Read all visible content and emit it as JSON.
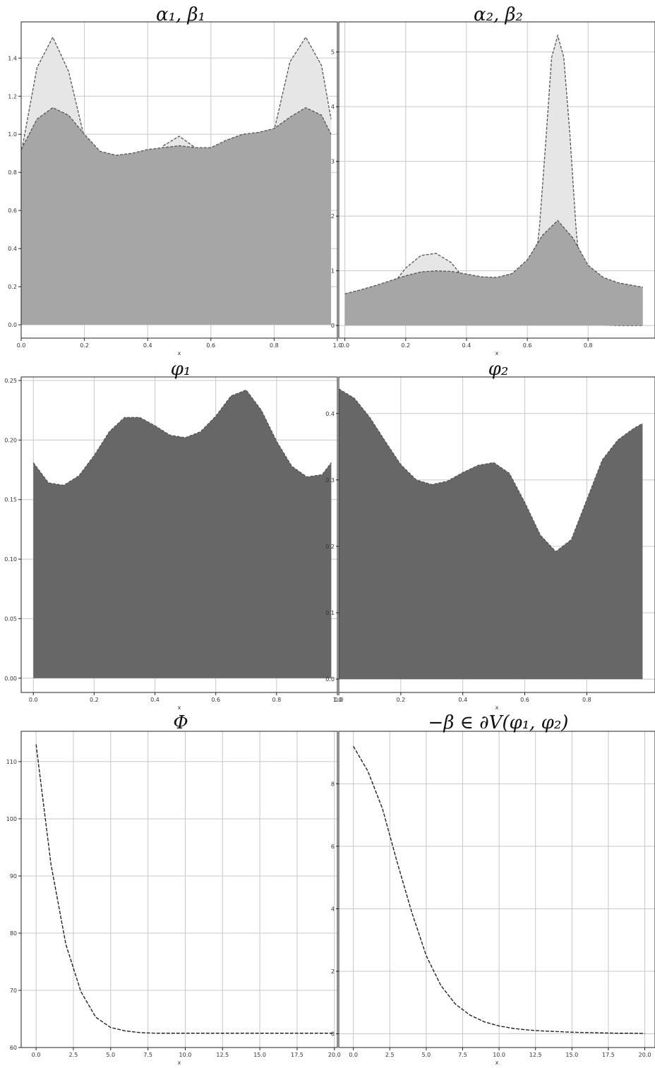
{
  "chart_data": [
    {
      "type": "area",
      "title": "α₁, β₁",
      "xlabel": "x",
      "xlim": [
        0,
        1.0
      ],
      "ylim": [
        -0.07,
        1.59
      ],
      "xticks": [
        0.0,
        0.2,
        0.4,
        0.6,
        0.8,
        1.0
      ],
      "yticks": [
        0.0,
        0.2,
        0.4,
        0.6,
        0.8,
        1.0,
        1.2,
        1.4
      ],
      "xtick_labels": [
        "0.0",
        "0.2",
        "0.4",
        "0.6",
        "0.8",
        "1.0"
      ],
      "ytick_labels": [
        "0.0",
        "0.2",
        "0.4",
        "0.6",
        "0.8",
        "1.0",
        "1.2",
        "1.4"
      ],
      "grid": true,
      "series": [
        {
          "color": "#e6e6e6",
          "x": [
            0.0,
            0.05,
            0.1,
            0.15,
            0.2,
            0.25,
            0.3,
            0.35,
            0.4,
            0.45,
            0.5,
            0.55,
            0.6,
            0.65,
            0.7,
            0.75,
            0.8,
            0.85,
            0.9,
            0.95,
            0.98
          ],
          "y": [
            0.9,
            1.35,
            1.51,
            1.33,
            0.98,
            0.73,
            0.61,
            0.67,
            0.82,
            0.94,
            0.99,
            0.93,
            0.78,
            0.64,
            0.61,
            0.72,
            1.02,
            1.38,
            1.51,
            1.36,
            1.08
          ]
        },
        {
          "color": "#a6a6a6",
          "x": [
            0.0,
            0.05,
            0.1,
            0.15,
            0.2,
            0.25,
            0.3,
            0.35,
            0.4,
            0.45,
            0.5,
            0.55,
            0.6,
            0.65,
            0.7,
            0.75,
            0.8,
            0.85,
            0.9,
            0.95,
            0.98
          ],
          "y": [
            0.92,
            1.08,
            1.14,
            1.1,
            1.0,
            0.91,
            0.89,
            0.9,
            0.92,
            0.93,
            0.94,
            0.93,
            0.93,
            0.97,
            1.0,
            1.01,
            1.03,
            1.09,
            1.14,
            1.1,
            1.0
          ]
        }
      ]
    },
    {
      "type": "area",
      "title": "α₂, β₂",
      "xlabel": "x",
      "xlim": [
        -0.02,
        1.02
      ],
      "ylim": [
        -0.23,
        5.55
      ],
      "xticks": [
        0.0,
        0.2,
        0.4,
        0.6,
        0.8
      ],
      "yticks": [
        0,
        1,
        2,
        3,
        4,
        5
      ],
      "xtick_labels": [
        "0.0",
        "0.2",
        "0.4",
        "0.6",
        "0.8"
      ],
      "ytick_labels": [
        "0",
        "1",
        "2",
        "3",
        "4",
        "5"
      ],
      "grid": true,
      "series": [
        {
          "color": "#e6e6e6",
          "x": [
            0.0,
            0.05,
            0.1,
            0.15,
            0.2,
            0.25,
            0.3,
            0.35,
            0.4,
            0.45,
            0.5,
            0.55,
            0.6,
            0.62,
            0.64,
            0.66,
            0.68,
            0.7,
            0.72,
            0.74,
            0.76,
            0.78,
            0.8,
            0.85,
            0.9,
            0.98
          ],
          "y": [
            0.02,
            0.1,
            0.35,
            0.7,
            1.05,
            1.28,
            1.32,
            1.15,
            0.8,
            0.42,
            0.18,
            0.1,
            0.3,
            0.8,
            1.8,
            3.3,
            4.9,
            5.3,
            4.9,
            3.5,
            1.8,
            0.6,
            0.15,
            0.01,
            0.0,
            0.0
          ]
        },
        {
          "color": "#a6a6a6",
          "x": [
            0.0,
            0.05,
            0.1,
            0.15,
            0.2,
            0.25,
            0.3,
            0.35,
            0.4,
            0.45,
            0.5,
            0.55,
            0.6,
            0.65,
            0.7,
            0.75,
            0.8,
            0.85,
            0.9,
            0.95,
            0.98
          ],
          "y": [
            0.58,
            0.65,
            0.73,
            0.82,
            0.91,
            0.98,
            1.0,
            0.99,
            0.94,
            0.89,
            0.88,
            0.95,
            1.2,
            1.65,
            1.92,
            1.6,
            1.1,
            0.88,
            0.78,
            0.73,
            0.7
          ]
        }
      ]
    },
    {
      "type": "area",
      "title": "φ₁",
      "xlabel": "x",
      "xlim": [
        -0.04,
        1.0
      ],
      "ylim": [
        -0.012,
        0.253
      ],
      "xticks": [
        0.0,
        0.2,
        0.4,
        0.6,
        0.8,
        1.0
      ],
      "yticks": [
        0.0,
        0.05,
        0.1,
        0.15,
        0.2,
        0.25
      ],
      "xtick_labels": [
        "0.0",
        "0.2",
        "0.4",
        "0.6",
        "0.8",
        "1.0"
      ],
      "ytick_labels": [
        "0.00",
        "0.05",
        "0.10",
        "0.15",
        "0.20",
        "0.25"
      ],
      "grid": true,
      "series": [
        {
          "color": "#676767",
          "x": [
            0.0,
            0.05,
            0.1,
            0.15,
            0.2,
            0.25,
            0.3,
            0.35,
            0.4,
            0.45,
            0.5,
            0.55,
            0.6,
            0.65,
            0.7,
            0.75,
            0.8,
            0.85,
            0.9,
            0.95,
            0.98
          ],
          "y": [
            0.181,
            0.164,
            0.162,
            0.17,
            0.187,
            0.207,
            0.219,
            0.219,
            0.212,
            0.204,
            0.202,
            0.207,
            0.22,
            0.237,
            0.242,
            0.225,
            0.199,
            0.178,
            0.169,
            0.171,
            0.181
          ]
        }
      ]
    },
    {
      "type": "area",
      "title": "φ₂",
      "xlabel": "x",
      "xlim": [
        0.0,
        1.02
      ],
      "ylim": [
        -0.02,
        0.455
      ],
      "xticks": [
        0.0,
        0.2,
        0.4,
        0.6,
        0.8
      ],
      "yticks": [
        0.0,
        0.1,
        0.2,
        0.3,
        0.4
      ],
      "xtick_labels": [
        "0.0",
        "0.2",
        "0.4",
        "0.6",
        "0.8"
      ],
      "ytick_labels": [
        "0.0",
        "0.1",
        "0.2",
        "0.3",
        "0.4"
      ],
      "grid": true,
      "series": [
        {
          "color": "#676767",
          "x": [
            0.0,
            0.05,
            0.1,
            0.15,
            0.2,
            0.25,
            0.3,
            0.35,
            0.4,
            0.45,
            0.5,
            0.55,
            0.6,
            0.65,
            0.7,
            0.75,
            0.8,
            0.85,
            0.9,
            0.95,
            0.98
          ],
          "y": [
            0.437,
            0.423,
            0.394,
            0.358,
            0.323,
            0.3,
            0.293,
            0.298,
            0.311,
            0.322,
            0.326,
            0.31,
            0.266,
            0.217,
            0.192,
            0.21,
            0.27,
            0.33,
            0.36,
            0.377,
            0.385
          ]
        }
      ]
    },
    {
      "type": "line",
      "title": "Φ",
      "xlabel": "x",
      "xlim": [
        -1.0,
        20.2
      ],
      "ylim": [
        60,
        115.3
      ],
      "xticks": [
        0.0,
        2.5,
        5.0,
        7.5,
        10.0,
        12.5,
        15.0,
        17.5,
        20.0
      ],
      "yticks": [
        60,
        70,
        80,
        90,
        100,
        110
      ],
      "xtick_labels": [
        "0.0",
        "2.5",
        "5.0",
        "7.5",
        "10.0",
        "12.5",
        "15.0",
        "17.5",
        "20.0"
      ],
      "ytick_labels": [
        "60",
        "70",
        "80",
        "90",
        "100",
        "110"
      ],
      "grid": true,
      "series": [
        {
          "color": "#222222",
          "x": [
            0,
            1,
            2,
            3,
            4,
            5,
            6,
            7,
            8,
            9,
            10,
            11,
            12,
            13,
            14,
            15,
            16,
            17,
            18,
            19,
            20
          ],
          "y": [
            113.0,
            92.0,
            78.0,
            69.8,
            65.3,
            63.5,
            62.9,
            62.6,
            62.5,
            62.5,
            62.5,
            62.5,
            62.5,
            62.5,
            62.5,
            62.5,
            62.5,
            62.5,
            62.5,
            62.5,
            62.5
          ]
        }
      ]
    },
    {
      "type": "line",
      "title": "−β ∈ ∂V(φ₁, φ₂)",
      "xlabel": "x",
      "xlim": [
        -1.0,
        20.7
      ],
      "ylim": [
        -0.44,
        9.68
      ],
      "xticks": [
        0.0,
        2.5,
        5.0,
        7.5,
        10.0,
        12.5,
        15.0,
        17.5,
        20.0
      ],
      "yticks": [
        0,
        2,
        4,
        6,
        8
      ],
      "xtick_labels": [
        "0.0",
        "2.5",
        "5.0",
        "7.5",
        "10.0",
        "12.5",
        "15.0",
        "17.5",
        "20.0"
      ],
      "ytick_labels": [
        "0",
        "2",
        "4",
        "6",
        "8"
      ],
      "grid": true,
      "series": [
        {
          "color": "#222222",
          "x": [
            0,
            1,
            2,
            3,
            4,
            5,
            6,
            7,
            8,
            9,
            10,
            11,
            12,
            13,
            14,
            15,
            16,
            17,
            18,
            19,
            20
          ],
          "y": [
            9.2,
            8.4,
            7.2,
            5.5,
            3.9,
            2.5,
            1.55,
            0.95,
            0.6,
            0.38,
            0.25,
            0.17,
            0.12,
            0.09,
            0.07,
            0.05,
            0.04,
            0.03,
            0.02,
            0.02,
            0.01
          ]
        }
      ]
    }
  ]
}
